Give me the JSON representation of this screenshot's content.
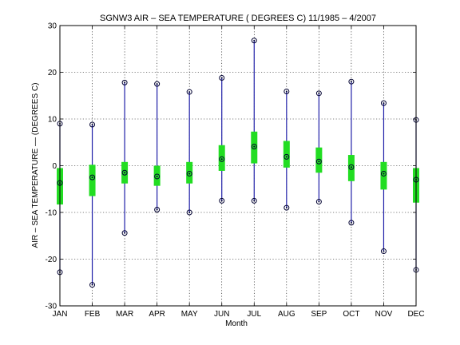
{
  "chart_data": {
    "type": "box",
    "title": "SGNW3  AIR – SEA TEMPERATURE ( DEGREES C) 11/1985 – 4/2007",
    "xlabel": "Month",
    "ylabel": "AIR – SEA TEMPERATURE –– (DEGREES C)",
    "ylim": [
      -30,
      30
    ],
    "yticks": [
      -30,
      -20,
      -10,
      0,
      10,
      20,
      30
    ],
    "grid": true,
    "categories": [
      "JAN",
      "FEB",
      "MAR",
      "APR",
      "MAY",
      "JUN",
      "JUL",
      "AUG",
      "SEP",
      "OCT",
      "NOV",
      "DEC"
    ],
    "series": [
      {
        "max": 9,
        "q3": -0.5,
        "median": -3.7,
        "q1": -8.3,
        "min": -22.8
      },
      {
        "max": 8.8,
        "q3": 0.2,
        "median": -2.5,
        "q1": -6.5,
        "min": -25.5
      },
      {
        "max": 17.8,
        "q3": 0.8,
        "median": -1.5,
        "q1": -3.8,
        "min": -14.4
      },
      {
        "max": 17.5,
        "q3": 0,
        "median": -2.3,
        "q1": -4.3,
        "min": -9.4
      },
      {
        "max": 15.8,
        "q3": 0.8,
        "median": -1.7,
        "q1": -3.8,
        "min": -10
      },
      {
        "max": 18.8,
        "q3": 4.4,
        "median": 1.4,
        "q1": -1.1,
        "min": -7.5
      },
      {
        "max": 26.8,
        "q3": 7.3,
        "median": 4.1,
        "q1": 0.5,
        "min": -7.5
      },
      {
        "max": 15.9,
        "q3": 5.3,
        "median": 1.9,
        "q1": -0.4,
        "min": -9
      },
      {
        "max": 15.5,
        "q3": 3.9,
        "median": 0.9,
        "q1": -1.5,
        "min": -7.7
      },
      {
        "max": 18,
        "q3": 2.3,
        "median": -0.3,
        "q1": -3.3,
        "min": -12.2
      },
      {
        "max": 13.4,
        "q3": 0.8,
        "median": -1.7,
        "q1": -5.1,
        "min": -18.3
      },
      {
        "max": 9.8,
        "q3": -0.5,
        "median": -3,
        "q1": -7.9,
        "min": -22.3
      }
    ],
    "colors": {
      "whisker": "#1f1fa8",
      "box": "#22dd22",
      "marker": "#000030"
    }
  }
}
